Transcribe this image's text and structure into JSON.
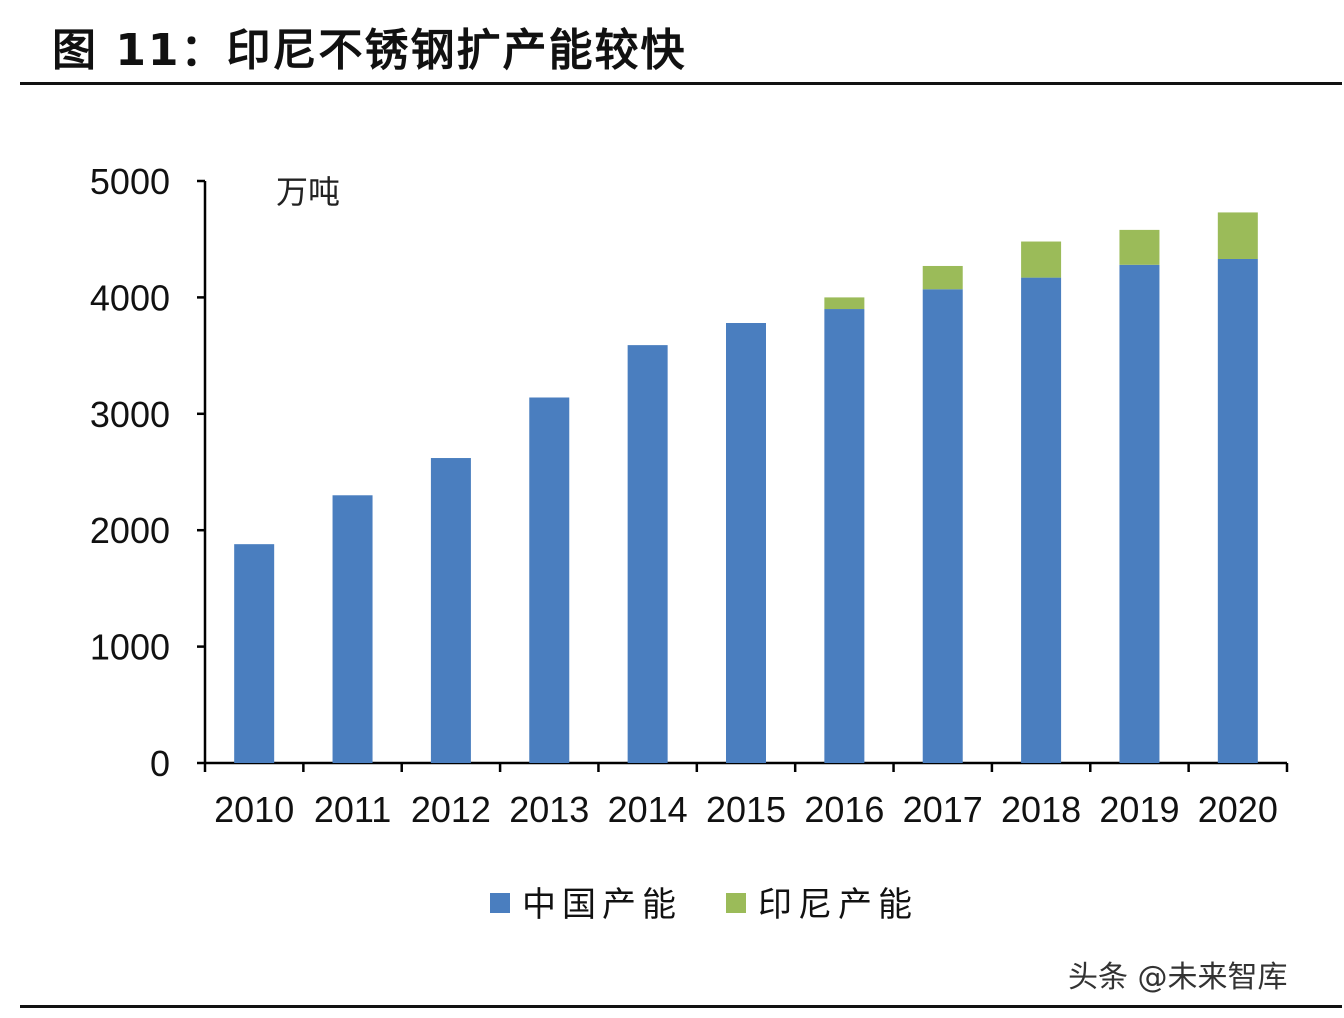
{
  "figure_title": "图 11：印尼不锈钢扩产能较快",
  "watermark": "头条 @未来智库",
  "chart_data": {
    "type": "bar",
    "stacked": true,
    "title": "",
    "unit_label": "万吨",
    "xlabel": "",
    "ylabel": "",
    "ylim": [
      0,
      5000
    ],
    "yticks": [
      0,
      1000,
      2000,
      3000,
      4000,
      5000
    ],
    "grid": false,
    "legend_position": "bottom",
    "categories": [
      "2010",
      "2011",
      "2012",
      "2013",
      "2014",
      "2015",
      "2016",
      "2017",
      "2018",
      "2019",
      "2020"
    ],
    "series": [
      {
        "name": "中国产能",
        "color": "#4a7ebf",
        "values": [
          1880,
          2300,
          2620,
          3140,
          3590,
          3780,
          3900,
          4070,
          4170,
          4280,
          4330
        ]
      },
      {
        "name": "印尼产能",
        "color": "#9bbb59",
        "values": [
          0,
          0,
          0,
          0,
          0,
          0,
          100,
          200,
          310,
          300,
          400
        ]
      }
    ]
  }
}
